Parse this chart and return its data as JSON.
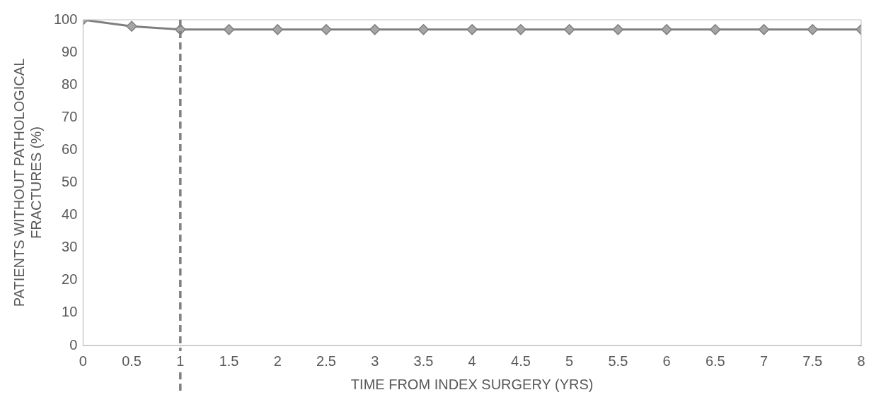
{
  "chart_data": {
    "type": "line",
    "xlabel": "TIME FROM INDEX SURGERY (YRS)",
    "ylabel": "PATIENTS WITHOUT PATHOLOGICAL FRACTURES (%)",
    "x": [
      0,
      0.5,
      1,
      1.5,
      2,
      2.5,
      3,
      3.5,
      4,
      4.5,
      5,
      5.5,
      6,
      6.5,
      7,
      7.5,
      8
    ],
    "series": [
      {
        "color": "#7f7f7f",
        "values": [
          100,
          98,
          97,
          97,
          97,
          97,
          97,
          97,
          97,
          97,
          97,
          97,
          97,
          97,
          97,
          97,
          97
        ]
      }
    ],
    "xlim": [
      0,
      8
    ],
    "xticks": [
      0,
      0.5,
      1,
      1.5,
      2,
      2.5,
      3,
      3.5,
      4,
      4.5,
      5,
      5.5,
      6,
      6.5,
      7,
      7.5,
      8
    ],
    "ylim": [
      0,
      100
    ],
    "yticks": [
      0,
      10,
      20,
      30,
      40,
      50,
      60,
      70,
      80,
      90,
      100
    ],
    "ref_lines": [
      {
        "axis": "x",
        "value": 1,
        "color": "#808080",
        "line_style": "dashed"
      }
    ],
    "grid": false,
    "legend": false,
    "marker": "diamond",
    "line_style": "solid"
  }
}
